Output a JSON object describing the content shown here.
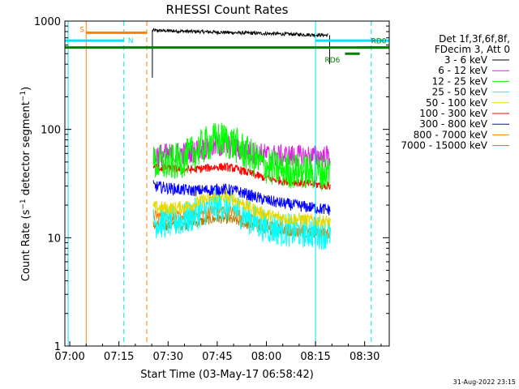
{
  "chart_data": {
    "type": "line",
    "title": "RHESSI Count Rates",
    "xlabel": "Start Time (03-May-17 06:58:42)",
    "ylabel_main": "Count Rate (s",
    "ylabel_sup1": "−1",
    "ylabel_mid": " detector segment",
    "ylabel_sup2": "−1",
    "ylabel_end": ")",
    "yscale": "log",
    "ylim": [
      1,
      1000
    ],
    "xlim_minutes": [
      -1.5,
      97.5
    ],
    "xlim_note": "minutes after 07:00",
    "x_ticks": [
      {
        "label": "07:00",
        "minute": 0
      },
      {
        "label": "07:15",
        "minute": 15
      },
      {
        "label": "07:30",
        "minute": 30
      },
      {
        "label": "07:45",
        "minute": 45
      },
      {
        "label": "08:00",
        "minute": 60
      },
      {
        "label": "08:15",
        "minute": 75
      },
      {
        "label": "08:30",
        "minute": 90
      }
    ],
    "y_ticks": [
      {
        "label": "1",
        "value": 1
      },
      {
        "label": "10",
        "value": 10
      },
      {
        "label": "100",
        "value": 100
      },
      {
        "label": "1000",
        "value": 1000
      }
    ],
    "legend_header": [
      "Det 1f,3f,6f,8f,",
      "FDecim 3, Att 0"
    ],
    "series": [
      {
        "name": "3 - 6 keV",
        "color": "#000000",
        "start_value": 820,
        "end_value": 740,
        "peak": 0,
        "noise": 0.02,
        "t_start": 25.2,
        "t_end": 78.8
      },
      {
        "name": "6 - 12 keV",
        "color": "#e020e0",
        "start_value": 58,
        "end_value": 56,
        "peak": 70,
        "noise": 0.14,
        "t_start": 25.5,
        "t_end": 79.5
      },
      {
        "name": "12 - 25 keV",
        "color": "#00ff00",
        "start_value": 48,
        "end_value": 40,
        "peak": 80,
        "noise": 0.22,
        "t_start": 25.5,
        "t_end": 79.5
      },
      {
        "name": "25 - 50 keV",
        "color": "#00ffff",
        "start_value": 14,
        "end_value": 11,
        "peak": 20,
        "noise": 0.2,
        "t_start": 25.5,
        "t_end": 79.5
      },
      {
        "name": "50 - 100 keV",
        "color": "#e8d800",
        "start_value": 19,
        "end_value": 14,
        "peak": 24,
        "noise": 0.08,
        "t_start": 25.5,
        "t_end": 79.5
      },
      {
        "name": "100 - 300 keV",
        "color": "#ff0000",
        "start_value": 45,
        "end_value": 30,
        "peak": 45,
        "noise": 0.05,
        "t_start": 25.5,
        "t_end": 79.5
      },
      {
        "name": "300 - 800 keV",
        "color": "#0000ff",
        "start_value": 30,
        "end_value": 18,
        "peak": 28,
        "noise": 0.07,
        "t_start": 25.5,
        "t_end": 79.5
      },
      {
        "name": "800 - 7000 keV",
        "color": "#ff8000",
        "start_value": 16,
        "end_value": 11,
        "peak": 18,
        "noise": 0.07,
        "t_start": 25.5,
        "t_end": 79.5
      },
      {
        "name": "7000 - 15000 keV",
        "color": "#c07800",
        "start_value": 13,
        "end_value": 11,
        "peak": 15,
        "noise": 0.06,
        "t_start": 25.5,
        "t_end": 79.5
      }
    ],
    "annotations": {
      "vertical_lines": [
        {
          "name": "attenuator-vline-1",
          "minute": -0.5,
          "color": "#00e0ff",
          "style": "solid"
        },
        {
          "name": "saa-vline-start",
          "minute": 5.0,
          "color": "#ff8000",
          "style": "solid"
        },
        {
          "name": "night-vline-end",
          "minute": 16.5,
          "color": "#00e0ff",
          "style": "dashed"
        },
        {
          "name": "saa-vline-end",
          "minute": 23.5,
          "color": "#ff8000",
          "style": "dashed"
        },
        {
          "name": "night-vline-start",
          "minute": 75.0,
          "color": "#00e0ff",
          "style": "solid"
        },
        {
          "name": "night-vline-end-2",
          "minute": 92.0,
          "color": "#00e0ff",
          "style": "dashed"
        }
      ],
      "bars": [
        {
          "name": "saa-bar",
          "label": "S",
          "color": "#ff8000",
          "t0": 5.0,
          "t1": 23.5,
          "value": 780
        },
        {
          "name": "night-bar-1",
          "label": "N",
          "color": "#00e0ff",
          "t0": -1.5,
          "t1": 16.5,
          "value": 660
        },
        {
          "name": "night-bar-2",
          "label": "",
          "color": "#00e0ff",
          "t0": 75.0,
          "t1": 97.5,
          "value": 660
        },
        {
          "name": "decim-bar",
          "label": "",
          "color": "#008000",
          "t0": -1.5,
          "t1": 97.5,
          "value": 570
        },
        {
          "name": "rd6-bar",
          "label": "RD6",
          "color": "#008000",
          "t0": 84.0,
          "t1": 88.5,
          "value": 500
        },
        {
          "name": "rd0-bar",
          "label": "RD0",
          "color": "#008000",
          "t0": 87.5,
          "t1": 97.5,
          "value": 570
        }
      ]
    }
  },
  "footer_timestamp": "31-Aug-2022 23:15"
}
